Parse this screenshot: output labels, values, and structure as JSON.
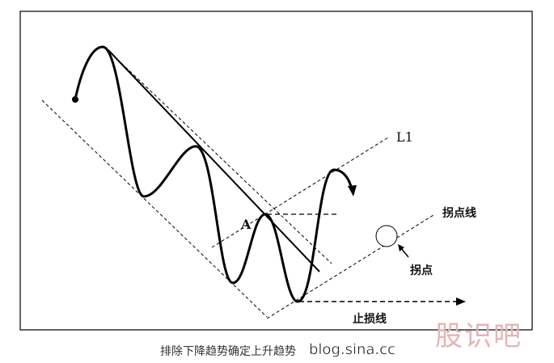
{
  "labels": {
    "l1": "L1",
    "a": "A",
    "inflection_line": "拐点线",
    "inflection_point": "拐点",
    "stop_loss_line": "止损线"
  },
  "caption": "排除下降趋势确定上升趋势",
  "watermark": "blog.sina.cc",
  "logo": "股识吧"
}
